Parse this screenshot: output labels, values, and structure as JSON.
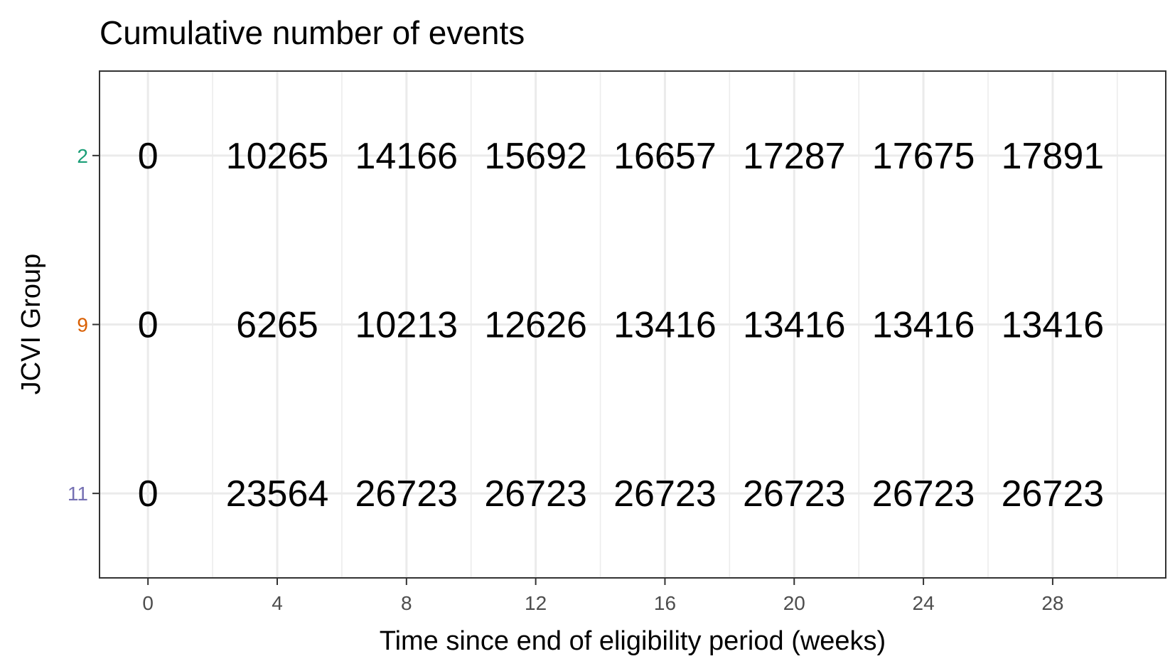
{
  "chart_data": {
    "type": "table",
    "title": "Cumulative number of events",
    "xlabel": "Time since end of eligibility period (weeks)",
    "ylabel": "JCVI Group",
    "x": [
      0,
      4,
      8,
      12,
      16,
      20,
      24,
      28
    ],
    "xlim": [
      -1.5,
      31.5
    ],
    "xticks": [
      "0",
      "4",
      "8",
      "12",
      "16",
      "20",
      "24",
      "28"
    ],
    "grid": true,
    "series": [
      {
        "group": "2",
        "color": "#1b9e77",
        "values": [
          0,
          10265,
          14166,
          15692,
          16657,
          17287,
          17675,
          17891
        ]
      },
      {
        "group": "9",
        "color": "#d95f02",
        "values": [
          0,
          6265,
          10213,
          12626,
          13416,
          13416,
          13416,
          13416
        ]
      },
      {
        "group": "11",
        "color": "#7570b3",
        "values": [
          0,
          23564,
          26723,
          26723,
          26723,
          26723,
          26723,
          26723
        ]
      }
    ]
  }
}
